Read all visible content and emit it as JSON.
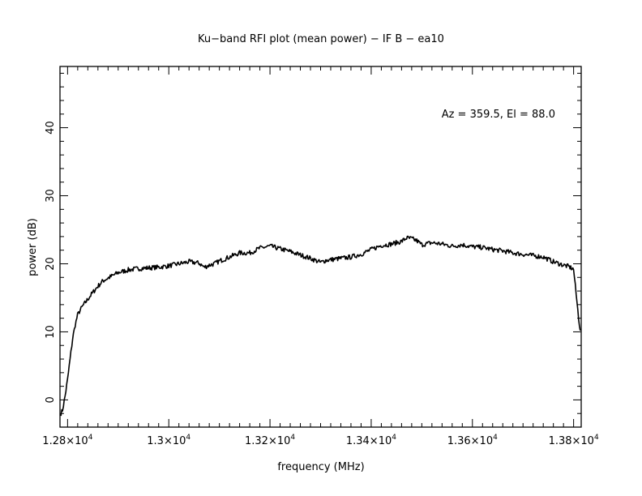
{
  "chart_data": {
    "type": "line",
    "title": "Ku−band RFI plot (mean power) − IF B − ea10",
    "xlabel": "frequency (MHz)",
    "ylabel": "power (dB)",
    "annotation": "Az = 359.5, El = 88.0",
    "xlim": [
      12785,
      13815
    ],
    "ylim": [
      -4,
      49
    ],
    "x_ticks": [
      12800,
      13000,
      13200,
      13400,
      13600,
      13800
    ],
    "x_tick_labels": [
      "1.28×10",
      "1.3×10",
      "1.32×10",
      "1.34×10",
      "1.36×10",
      "1.38×10"
    ],
    "x_tick_exponent": "4",
    "y_ticks": [
      0,
      10,
      20,
      30,
      40
    ],
    "y_tick_labels": [
      "0",
      "10",
      "20",
      "30",
      "40"
    ],
    "grid": false,
    "line_color": "#000000",
    "series": [
      {
        "x": [
          12787,
          12790,
          12795,
          12800,
          12805,
          12810,
          12815,
          12820,
          12825,
          12830,
          12840,
          12850,
          12860,
          12870,
          12880,
          12890,
          12900,
          12920,
          12940,
          12960,
          12980,
          13000,
          13020,
          13040,
          13060,
          13070,
          13080,
          13090,
          13100,
          13120,
          13140,
          13160,
          13180,
          13200,
          13210,
          13220,
          13240,
          13260,
          13280,
          13300,
          13310,
          13320,
          13340,
          13360,
          13380,
          13400,
          13420,
          13440,
          13460,
          13470,
          13480,
          13490,
          13500,
          13520,
          13540,
          13560,
          13580,
          13600,
          13620,
          13640,
          13660,
          13680,
          13700,
          13720,
          13740,
          13760,
          13780,
          13790,
          13800,
          13805,
          13810,
          13813
        ],
        "y": [
          -2,
          -1.5,
          0.5,
          3,
          6,
          9,
          11,
          12.5,
          13.2,
          13.8,
          14.8,
          15.8,
          16.7,
          17.5,
          17.9,
          18.3,
          18.7,
          19.1,
          19.3,
          19.4,
          19.5,
          19.7,
          20.0,
          20.3,
          20.1,
          19.5,
          19.8,
          20.0,
          20.4,
          21.0,
          21.6,
          21.6,
          22.3,
          22.6,
          22.4,
          22.2,
          21.8,
          21.3,
          20.8,
          20.2,
          20.5,
          20.6,
          20.8,
          21.0,
          21.4,
          22.1,
          22.7,
          22.9,
          23.3,
          23.8,
          23.7,
          23.4,
          22.8,
          23.1,
          22.9,
          22.6,
          22.8,
          22.5,
          22.4,
          22.1,
          21.9,
          21.6,
          21.4,
          21.2,
          21.0,
          20.3,
          19.8,
          19.6,
          19.2,
          15.5,
          12.0,
          10.2
        ]
      }
    ]
  }
}
